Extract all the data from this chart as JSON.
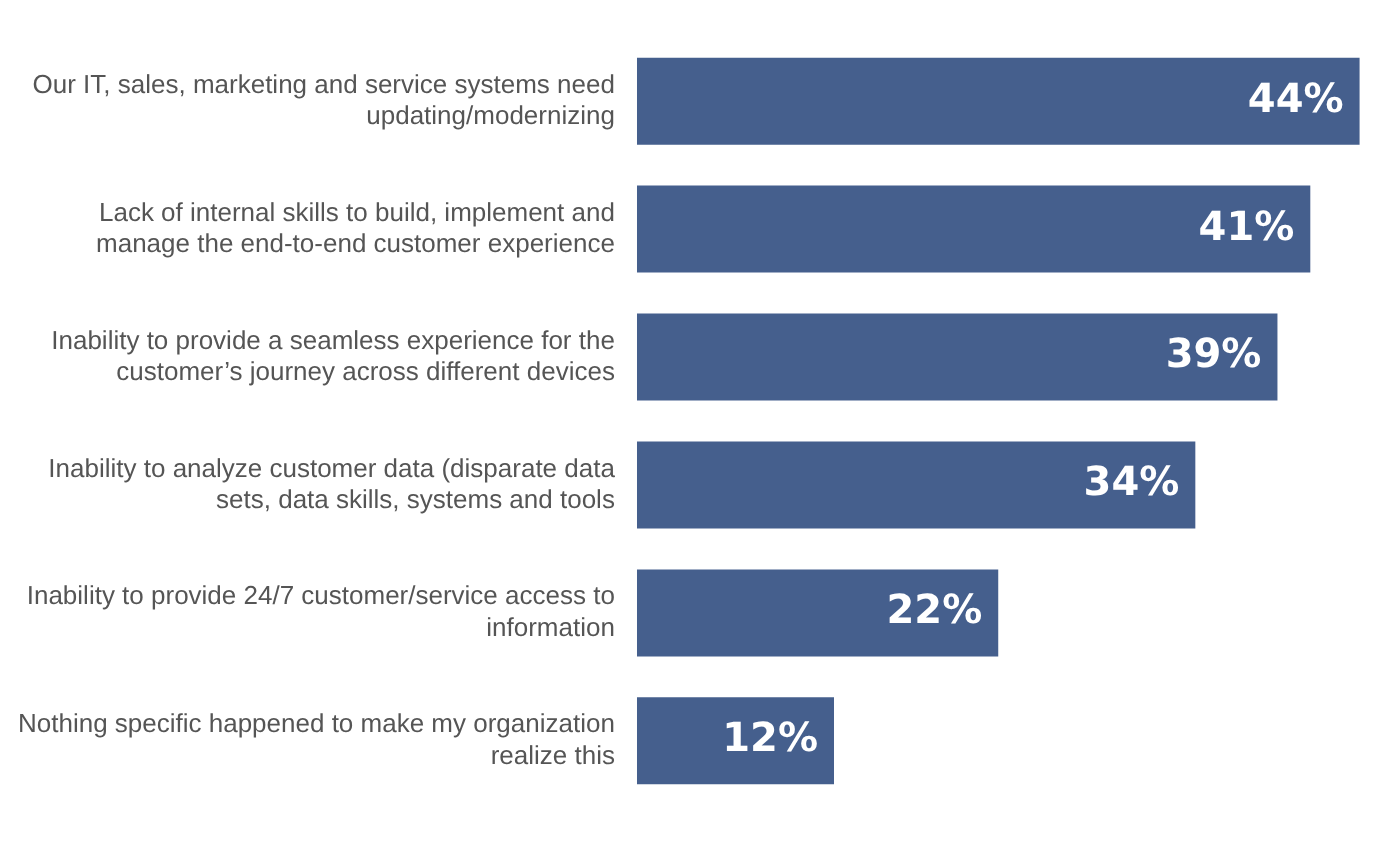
{
  "chart_data": {
    "type": "bar",
    "orientation": "horizontal",
    "categories": [
      "Our IT, sales, marketing and service systems need updating/modernizing",
      "Lack of internal skills to build, implement and manage the end-to-end customer experience",
      "Inability to provide a seamless experience for the customer’s journey across different devices",
      "Inability to analyze customer data (disparate data sets, data skills, systems and tools",
      "Inability to provide 24/7 customer/service access to information",
      "Nothing specific happened to make my organization realize this"
    ],
    "values": [
      44,
      41,
      39,
      34,
      22,
      12
    ],
    "value_labels": [
      "44%",
      "41%",
      "39%",
      "34%",
      "22%",
      "12%"
    ],
    "color": "#455f8d"
  }
}
